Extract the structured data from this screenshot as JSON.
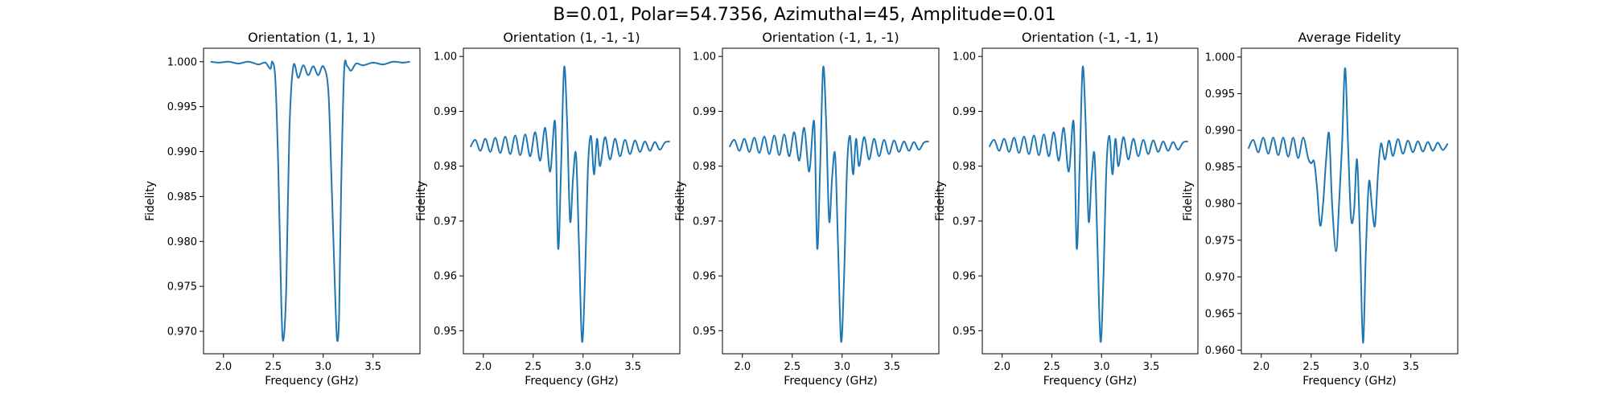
{
  "figure": {
    "suptitle": "B=0.01, Polar=54.7356, Azimuthal=45, Amplitude=0.01",
    "line_color": "#1f77b4"
  },
  "chart_data": [
    {
      "type": "line",
      "title": "Orientation (1, 1, 1)",
      "xlabel": "Frequency (GHz)",
      "ylabel": "Fidelity",
      "xlim": [
        1.8,
        3.97
      ],
      "ylim": [
        0.9675,
        1.0015
      ],
      "xticks": [
        2.0,
        2.5,
        3.0,
        3.5
      ],
      "xtick_labels": [
        "2.0",
        "2.5",
        "3.0",
        "3.5"
      ],
      "yticks": [
        0.97,
        0.975,
        0.98,
        0.985,
        0.99,
        0.995,
        1.0
      ],
      "ytick_labels": [
        "0.970",
        "0.975",
        "0.980",
        "0.985",
        "0.990",
        "0.995",
        "1.000"
      ],
      "series": [
        {
          "x": [
            1.87,
            1.95,
            2.05,
            2.15,
            2.25,
            2.35,
            2.42,
            2.47,
            2.49,
            2.52,
            2.55,
            2.58,
            2.6,
            2.63,
            2.66,
            2.7,
            2.75,
            2.8,
            2.85,
            2.9,
            2.95,
            3.0,
            3.05,
            3.08,
            3.12,
            3.14,
            3.16,
            3.18,
            3.21,
            3.24,
            3.28,
            3.33,
            3.4,
            3.5,
            3.6,
            3.7,
            3.8,
            3.87
          ],
          "y": [
            1.0,
            0.9999,
            1.0,
            0.9998,
            1.0,
            0.9997,
            0.9999,
            0.9992,
            1.0,
            0.998,
            0.988,
            0.973,
            0.969,
            0.975,
            0.992,
            0.9995,
            0.9982,
            0.9996,
            0.9985,
            0.9995,
            0.9985,
            0.9995,
            0.997,
            0.988,
            0.974,
            0.969,
            0.972,
            0.986,
            0.999,
            0.9995,
            0.999,
            0.9998,
            0.9996,
            0.9999,
            0.9997,
            1.0,
            0.9999,
            1.0
          ]
        }
      ]
    },
    {
      "type": "line",
      "title": "Orientation (1, -1, -1)",
      "xlabel": "Frequency (GHz)",
      "ylabel": "Fidelity",
      "xlim": [
        1.8,
        3.97
      ],
      "ylim": [
        0.9458,
        1.0015
      ],
      "xticks": [
        2.0,
        2.5,
        3.0,
        3.5
      ],
      "xtick_labels": [
        "2.0",
        "2.5",
        "3.0",
        "3.5"
      ],
      "yticks": [
        0.95,
        0.96,
        0.97,
        0.98,
        0.99,
        1.0
      ],
      "ytick_labels": [
        "0.95",
        "0.96",
        "0.97",
        "0.98",
        "0.99",
        "1.00"
      ],
      "series": [
        {
          "x": [
            1.87,
            1.92,
            1.97,
            2.02,
            2.07,
            2.12,
            2.17,
            2.22,
            2.27,
            2.32,
            2.37,
            2.42,
            2.47,
            2.52,
            2.57,
            2.62,
            2.67,
            2.72,
            2.75,
            2.78,
            2.81,
            2.84,
            2.87,
            2.9,
            2.93,
            2.96,
            2.99,
            3.02,
            3.05,
            3.08,
            3.11,
            3.14,
            3.17,
            3.22,
            3.27,
            3.32,
            3.37,
            3.42,
            3.47,
            3.52,
            3.57,
            3.62,
            3.67,
            3.72,
            3.77,
            3.82,
            3.87
          ],
          "y": [
            0.9835,
            0.9848,
            0.9828,
            0.985,
            0.9826,
            0.9852,
            0.9824,
            0.9854,
            0.9822,
            0.9856,
            0.982,
            0.9858,
            0.9818,
            0.9862,
            0.981,
            0.987,
            0.979,
            0.988,
            0.965,
            0.98,
            0.998,
            0.988,
            0.97,
            0.978,
            0.982,
            0.965,
            0.948,
            0.96,
            0.98,
            0.9855,
            0.9785,
            0.985,
            0.98,
            0.9853,
            0.9812,
            0.985,
            0.9818,
            0.9848,
            0.9822,
            0.9847,
            0.9826,
            0.9845,
            0.9828,
            0.9844,
            0.983,
            0.9843,
            0.9845
          ]
        }
      ]
    },
    {
      "type": "line",
      "title": "Orientation (-1, 1, -1)",
      "xlabel": "Frequency (GHz)",
      "ylabel": "Fidelity",
      "xlim": [
        1.8,
        3.97
      ],
      "ylim": [
        0.9458,
        1.0015
      ],
      "xticks": [
        2.0,
        2.5,
        3.0,
        3.5
      ],
      "xtick_labels": [
        "2.0",
        "2.5",
        "3.0",
        "3.5"
      ],
      "yticks": [
        0.95,
        0.96,
        0.97,
        0.98,
        0.99,
        1.0
      ],
      "ytick_labels": [
        "0.95",
        "0.96",
        "0.97",
        "0.98",
        "0.99",
        "1.00"
      ],
      "series": [
        {
          "x": [
            1.87,
            1.92,
            1.97,
            2.02,
            2.07,
            2.12,
            2.17,
            2.22,
            2.27,
            2.32,
            2.37,
            2.42,
            2.47,
            2.52,
            2.57,
            2.62,
            2.67,
            2.72,
            2.75,
            2.78,
            2.81,
            2.84,
            2.87,
            2.9,
            2.93,
            2.96,
            2.99,
            3.02,
            3.05,
            3.08,
            3.11,
            3.14,
            3.17,
            3.22,
            3.27,
            3.32,
            3.37,
            3.42,
            3.47,
            3.52,
            3.57,
            3.62,
            3.67,
            3.72,
            3.77,
            3.82,
            3.87
          ],
          "y": [
            0.9835,
            0.9848,
            0.9828,
            0.985,
            0.9826,
            0.9852,
            0.9824,
            0.9854,
            0.9822,
            0.9856,
            0.982,
            0.9858,
            0.9818,
            0.9862,
            0.981,
            0.987,
            0.979,
            0.988,
            0.965,
            0.98,
            0.998,
            0.988,
            0.97,
            0.978,
            0.982,
            0.965,
            0.948,
            0.96,
            0.98,
            0.9855,
            0.9785,
            0.985,
            0.98,
            0.9853,
            0.9812,
            0.985,
            0.9818,
            0.9848,
            0.9822,
            0.9847,
            0.9826,
            0.9845,
            0.9828,
            0.9844,
            0.983,
            0.9843,
            0.9845
          ]
        }
      ]
    },
    {
      "type": "line",
      "title": "Orientation (-1, -1, 1)",
      "xlabel": "Frequency (GHz)",
      "ylabel": "Fidelity",
      "xlim": [
        1.8,
        3.97
      ],
      "ylim": [
        0.9458,
        1.0015
      ],
      "xticks": [
        2.0,
        2.5,
        3.0,
        3.5
      ],
      "xtick_labels": [
        "2.0",
        "2.5",
        "3.0",
        "3.5"
      ],
      "yticks": [
        0.95,
        0.96,
        0.97,
        0.98,
        0.99,
        1.0
      ],
      "ytick_labels": [
        "0.95",
        "0.96",
        "0.97",
        "0.98",
        "0.99",
        "1.00"
      ],
      "series": [
        {
          "x": [
            1.87,
            1.92,
            1.97,
            2.02,
            2.07,
            2.12,
            2.17,
            2.22,
            2.27,
            2.32,
            2.37,
            2.42,
            2.47,
            2.52,
            2.57,
            2.62,
            2.67,
            2.72,
            2.75,
            2.78,
            2.81,
            2.84,
            2.87,
            2.9,
            2.93,
            2.96,
            2.99,
            3.02,
            3.05,
            3.08,
            3.11,
            3.14,
            3.17,
            3.22,
            3.27,
            3.32,
            3.37,
            3.42,
            3.47,
            3.52,
            3.57,
            3.62,
            3.67,
            3.72,
            3.77,
            3.82,
            3.87
          ],
          "y": [
            0.9835,
            0.9848,
            0.9828,
            0.985,
            0.9826,
            0.9852,
            0.9824,
            0.9854,
            0.9822,
            0.9856,
            0.982,
            0.9858,
            0.9818,
            0.9862,
            0.981,
            0.987,
            0.979,
            0.988,
            0.965,
            0.98,
            0.998,
            0.988,
            0.97,
            0.978,
            0.982,
            0.965,
            0.948,
            0.96,
            0.98,
            0.9855,
            0.9785,
            0.985,
            0.98,
            0.9853,
            0.9812,
            0.985,
            0.9818,
            0.9848,
            0.9822,
            0.9847,
            0.9826,
            0.9845,
            0.9828,
            0.9844,
            0.983,
            0.9843,
            0.9845
          ]
        }
      ]
    },
    {
      "type": "line",
      "title": "Average Fidelity",
      "xlabel": "Frequency (GHz)",
      "ylabel": "Fidelity",
      "xlim": [
        1.8,
        3.97
      ],
      "ylim": [
        0.9595,
        1.0012
      ],
      "xticks": [
        2.0,
        2.5,
        3.0,
        3.5
      ],
      "xtick_labels": [
        "2.0",
        "2.5",
        "3.0",
        "3.5"
      ],
      "yticks": [
        0.96,
        0.965,
        0.97,
        0.975,
        0.98,
        0.985,
        0.99,
        0.995,
        1.0
      ],
      "ytick_labels": [
        "0.960",
        "0.965",
        "0.970",
        "0.975",
        "0.980",
        "0.985",
        "0.990",
        "0.995",
        "1.000"
      ],
      "series": [
        {
          "x": [
            1.87,
            1.92,
            1.97,
            2.02,
            2.07,
            2.12,
            2.17,
            2.22,
            2.27,
            2.32,
            2.37,
            2.42,
            2.47,
            2.5,
            2.53,
            2.56,
            2.59,
            2.62,
            2.65,
            2.68,
            2.71,
            2.75,
            2.78,
            2.81,
            2.84,
            2.87,
            2.9,
            2.93,
            2.96,
            2.99,
            3.02,
            3.05,
            3.08,
            3.11,
            3.14,
            3.17,
            3.2,
            3.24,
            3.28,
            3.32,
            3.37,
            3.42,
            3.47,
            3.52,
            3.57,
            3.62,
            3.67,
            3.72,
            3.77,
            3.82,
            3.87
          ],
          "y": [
            0.9875,
            0.9887,
            0.987,
            0.989,
            0.9868,
            0.989,
            0.9866,
            0.989,
            0.9864,
            0.989,
            0.9862,
            0.989,
            0.9862,
            0.9855,
            0.9857,
            0.982,
            0.977,
            0.98,
            0.986,
            0.9895,
            0.98,
            0.9735,
            0.98,
            0.988,
            0.9985,
            0.988,
            0.978,
            0.979,
            0.986,
            0.975,
            0.961,
            0.974,
            0.983,
            0.9795,
            0.977,
            0.984,
            0.9882,
            0.986,
            0.9886,
            0.9865,
            0.9888,
            0.9868,
            0.9886,
            0.987,
            0.9885,
            0.9871,
            0.9884,
            0.9872,
            0.9883,
            0.9873,
            0.9882
          ]
        }
      ]
    }
  ]
}
